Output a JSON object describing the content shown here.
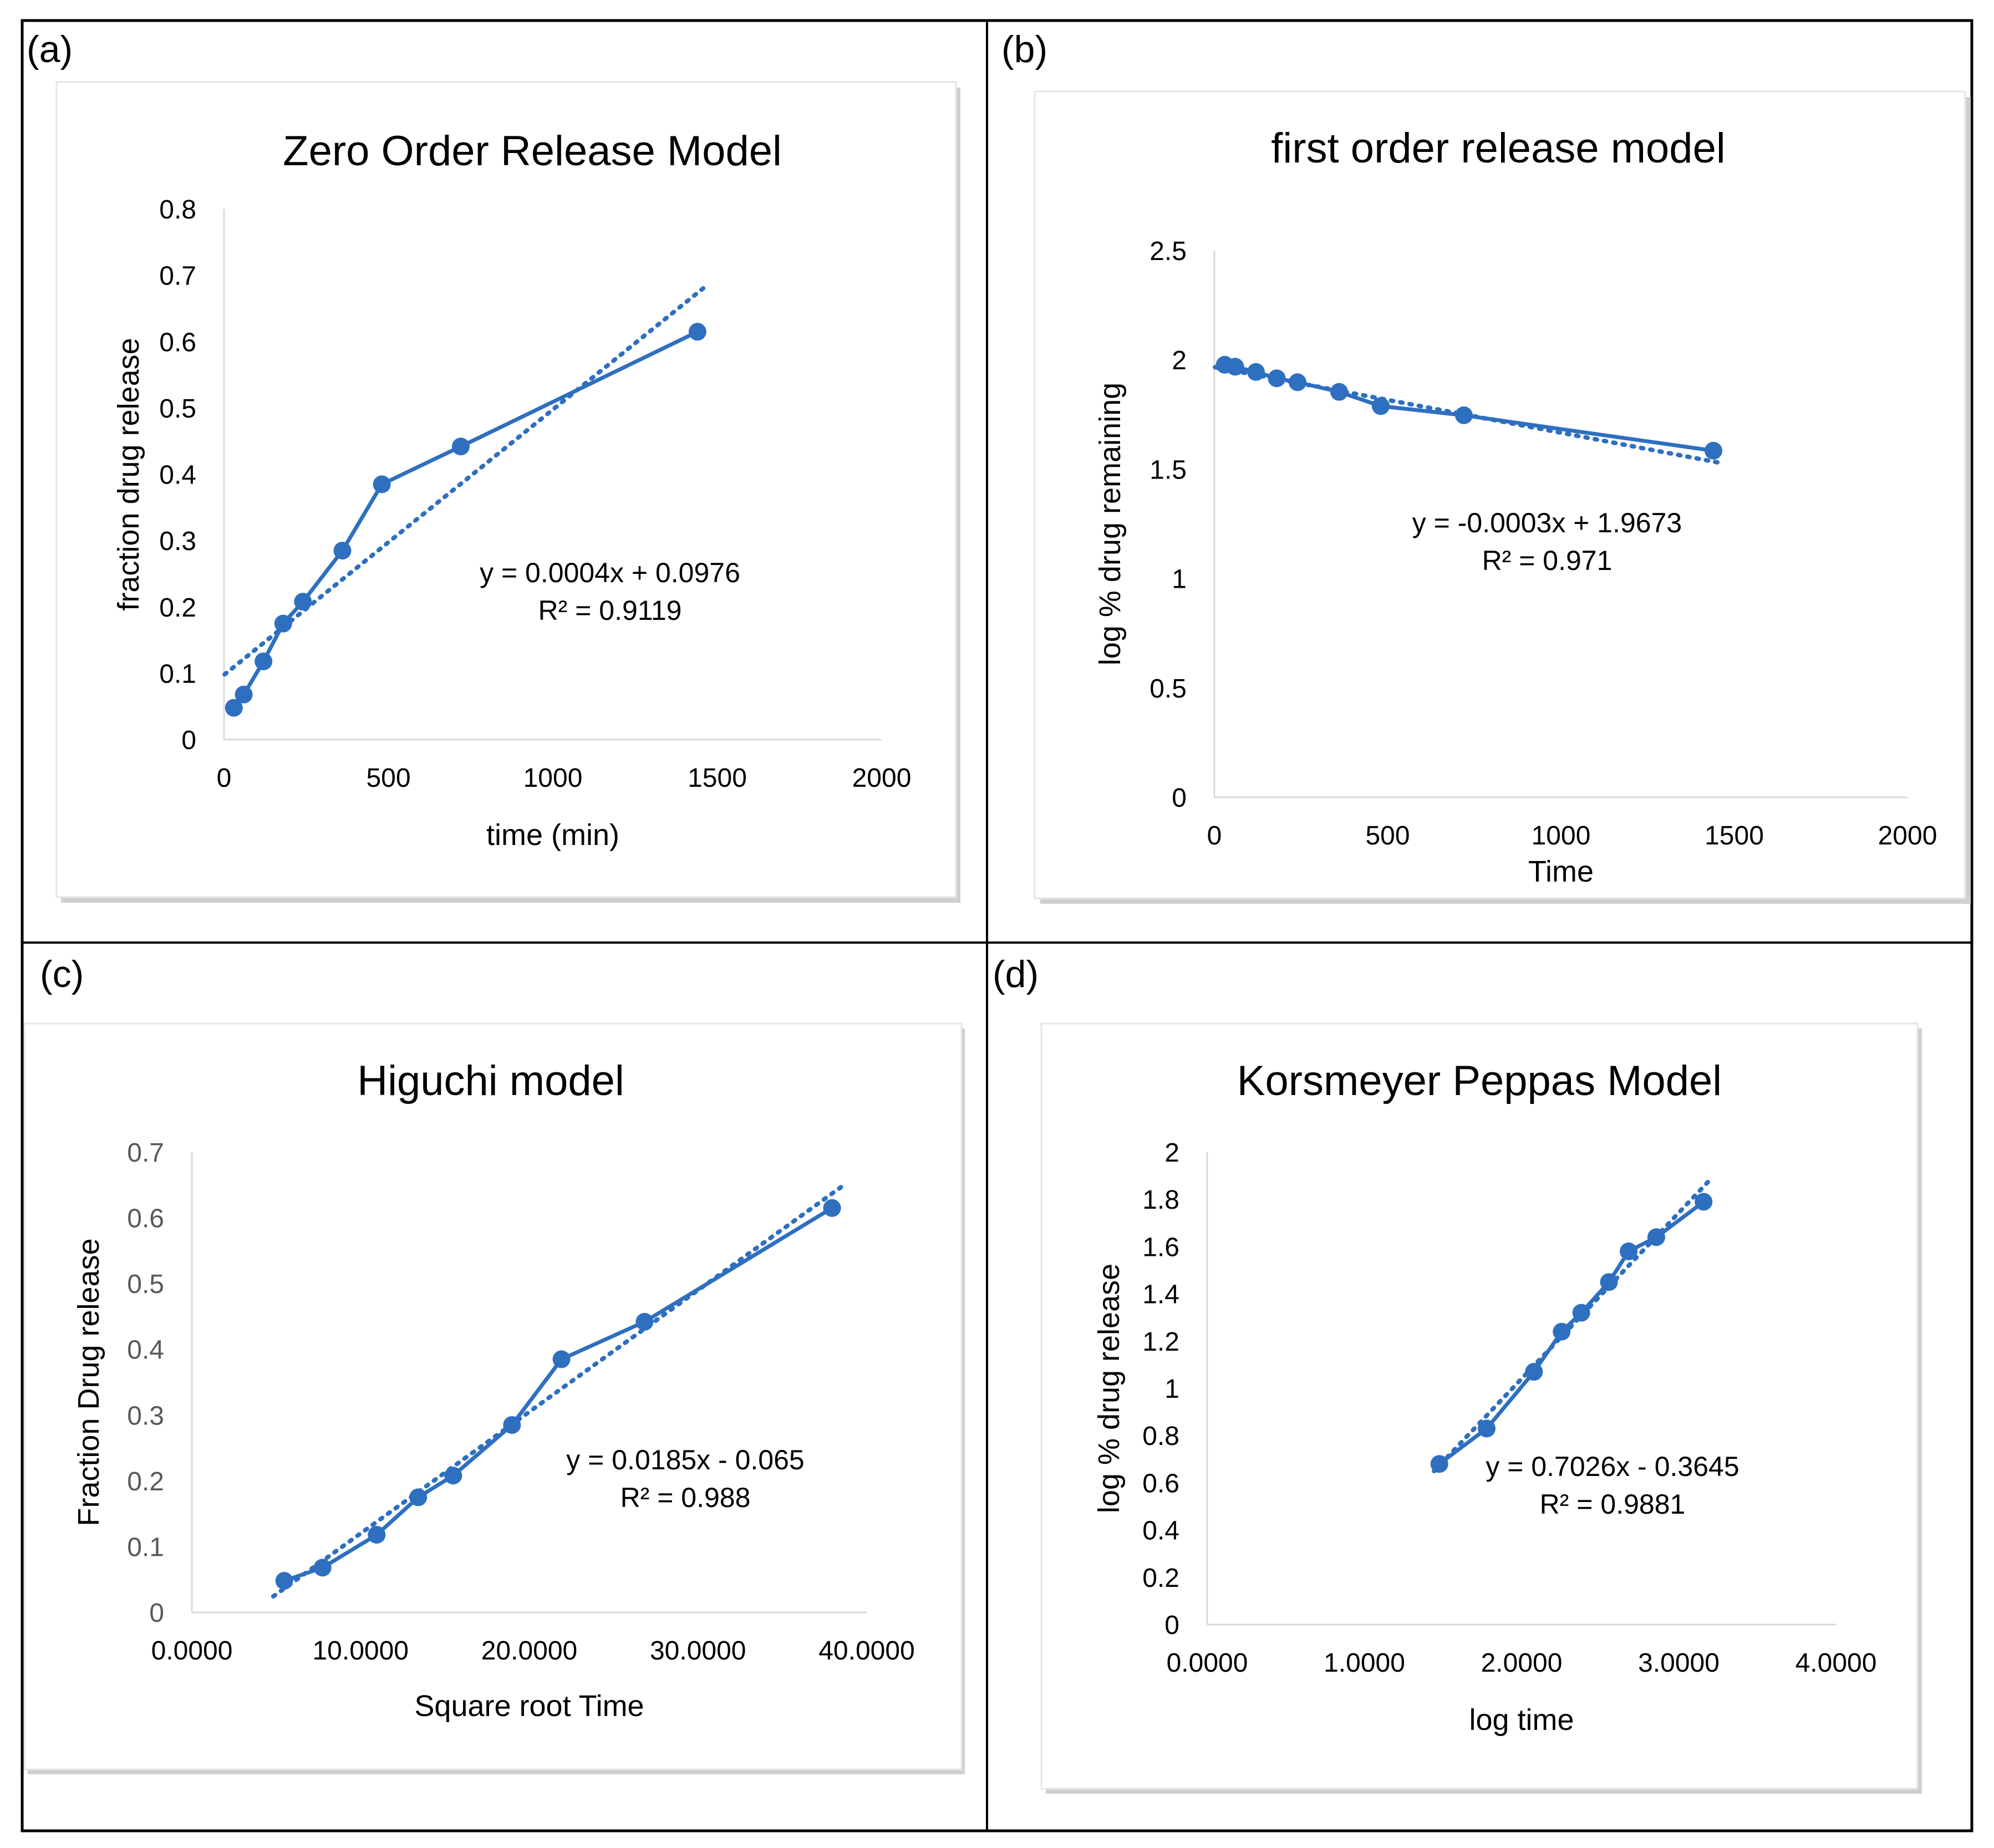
{
  "panels": {
    "a": {
      "label": "(a)",
      "title": "Zero Order Release Model"
    },
    "b": {
      "label": "(b)",
      "title": "first order release model"
    },
    "c": {
      "label": "(c)",
      "title": "Higuchi model"
    },
    "d": {
      "label": "(d)",
      "title": "Korsmeyer Peppas Model"
    }
  },
  "colors": {
    "series": "#2E6FC0",
    "axis": "#d9d9d9",
    "tick_text": "#000000",
    "tick_text_gray": "#595959",
    "border": "#000000"
  },
  "chart_data": [
    {
      "id": "a",
      "type": "scatter",
      "title": "Zero Order Release Model",
      "xlabel": "time (min)",
      "ylabel": "fraction drug release",
      "xlim": [
        0,
        2000
      ],
      "ylim": [
        0,
        0.8
      ],
      "xticks": [
        0,
        500,
        1000,
        1500,
        2000
      ],
      "xtick_labels": [
        "0",
        "500",
        "1000",
        "1500",
        "2000"
      ],
      "yticks": [
        0,
        0.1,
        0.2,
        0.3,
        0.4,
        0.5,
        0.6,
        0.7,
        0.8
      ],
      "ytick_labels": [
        "0",
        "0.1",
        "0.2",
        "0.3",
        "0.4",
        "0.5",
        "0.6",
        "0.7",
        "0.8"
      ],
      "series": [
        {
          "name": "fraction drug release",
          "x": [
            30,
            60,
            120,
            180,
            240,
            360,
            480,
            720,
            1440
          ],
          "y": [
            0.048,
            0.068,
            0.118,
            0.175,
            0.208,
            0.285,
            0.385,
            0.442,
            0.615
          ]
        }
      ],
      "trendline": {
        "slope": 0.0004,
        "intercept": 0.0976,
        "x_range": [
          30,
          1440
        ]
      },
      "equation": "y = 0.0004x + 0.0976",
      "r2": "R² = 0.9119"
    },
    {
      "id": "b",
      "type": "scatter",
      "title": "first order release model",
      "xlabel": "Time",
      "ylabel": "log % drug remaining",
      "xlim": [
        0,
        2000
      ],
      "ylim": [
        0,
        2.5
      ],
      "xticks": [
        0,
        500,
        1000,
        1500,
        2000
      ],
      "xtick_labels": [
        "0",
        "500",
        "1000",
        "1500",
        "2000"
      ],
      "yticks": [
        0,
        0.5,
        1,
        1.5,
        2,
        2.5
      ],
      "ytick_labels": [
        "0",
        "0.5",
        "1",
        "1.5",
        "2",
        "2.5"
      ],
      "series": [
        {
          "name": "log % drug remaining",
          "x": [
            30,
            60,
            120,
            180,
            240,
            360,
            480,
            720,
            1440
          ],
          "y": [
            1.978,
            1.969,
            1.945,
            1.916,
            1.898,
            1.854,
            1.789,
            1.747,
            1.585
          ]
        }
      ],
      "trendline": {
        "slope": -0.0003,
        "intercept": 1.9673,
        "x_range": [
          30,
          1440
        ]
      },
      "equation": "y = -0.0003x + 1.9673",
      "r2": "R² = 0.971"
    },
    {
      "id": "c",
      "type": "scatter",
      "title": "Higuchi model",
      "xlabel": "Square root Time",
      "ylabel": "Fraction Drug release",
      "xlim": [
        0,
        40
      ],
      "ylim": [
        0,
        0.7
      ],
      "xticks": [
        0,
        10,
        20,
        30,
        40
      ],
      "xtick_labels": [
        "0.0000",
        "10.0000",
        "20.0000",
        "30.0000",
        "40.0000"
      ],
      "yticks": [
        0,
        0.1,
        0.2,
        0.3,
        0.4,
        0.5,
        0.6,
        0.7
      ],
      "ytick_labels": [
        "0",
        "0.1",
        "0.2",
        "0.3",
        "0.4",
        "0.5",
        "0.6",
        "0.7"
      ],
      "series": [
        {
          "name": "Fraction Drug release",
          "x": [
            5.477,
            7.746,
            10.954,
            13.416,
            15.492,
            18.974,
            21.909,
            26.833,
            37.947
          ],
          "y": [
            0.048,
            0.068,
            0.118,
            0.175,
            0.208,
            0.285,
            0.385,
            0.442,
            0.615
          ]
        }
      ],
      "trendline": {
        "slope": 0.0185,
        "intercept": -0.065,
        "x_range": [
          5.477,
          37.947
        ]
      },
      "equation": "y = 0.0185x - 0.065",
      "r2": "R² = 0.988"
    },
    {
      "id": "d",
      "type": "scatter",
      "title": "Korsmeyer Peppas Model",
      "xlabel": "log time",
      "ylabel": "log % drug release",
      "xlim": [
        0,
        4
      ],
      "ylim": [
        0,
        2
      ],
      "xticks": [
        0,
        1,
        2,
        3,
        4
      ],
      "xtick_labels": [
        "0.0000",
        "1.0000",
        "2.0000",
        "3.0000",
        "4.0000"
      ],
      "yticks": [
        0,
        0.2,
        0.4,
        0.6,
        0.8,
        1,
        1.2,
        1.4,
        1.6,
        1.8,
        2
      ],
      "ytick_labels": [
        "0",
        "0.2",
        "0.4",
        "0.6",
        "0.8",
        "1",
        "1.2",
        "1.4",
        "1.6",
        "1.8",
        "2"
      ],
      "series": [
        {
          "name": "log % drug release",
          "x": [
            1.477,
            1.778,
            2.079,
            2.255,
            2.38,
            2.556,
            2.681,
            2.857,
            3.158
          ],
          "y": [
            0.68,
            0.83,
            1.07,
            1.24,
            1.32,
            1.45,
            1.58,
            1.64,
            1.79
          ]
        }
      ],
      "trendline": {
        "slope": 0.7026,
        "intercept": -0.3645,
        "x_range": [
          1.477,
          3.158
        ]
      },
      "equation": "y = 0.7026x - 0.3645",
      "r2": "R² = 0.9881"
    }
  ]
}
